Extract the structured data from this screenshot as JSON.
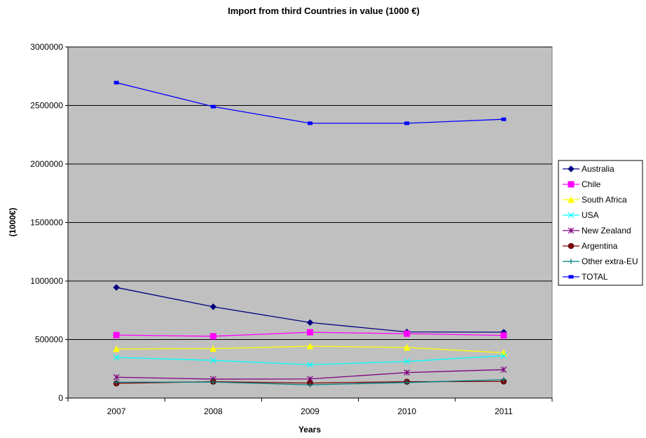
{
  "chart_data": {
    "type": "line",
    "title": "Import from third Countries in value (1000 €)",
    "xlabel": "Years",
    "ylabel": "(1000€)",
    "categories": [
      "2007",
      "2008",
      "2009",
      "2010",
      "2011"
    ],
    "ylim": [
      0,
      3000000
    ],
    "yticks": [
      "0",
      "500000",
      "1000000",
      "1500000",
      "2000000",
      "2500000",
      "3000000"
    ],
    "ytick_values": [
      0,
      500000,
      1000000,
      1500000,
      2000000,
      2500000,
      3000000
    ],
    "grid": "horizontal",
    "legend_position": "right",
    "plot_background": "#c0c0c0",
    "series": [
      {
        "name": "Australia",
        "color": "#000080",
        "marker": "diamond",
        "values": [
          945000,
          780000,
          645000,
          565000,
          563000
        ]
      },
      {
        "name": "Chile",
        "color": "#ff00ff",
        "marker": "square",
        "values": [
          538000,
          528000,
          562000,
          550000,
          535000
        ]
      },
      {
        "name": "South Africa",
        "color": "#ffff00",
        "marker": "triangle",
        "values": [
          420000,
          422000,
          443000,
          432000,
          387000
        ]
      },
      {
        "name": "USA",
        "color": "#00ffff",
        "marker": "x",
        "values": [
          347000,
          322000,
          285000,
          313000,
          362000
        ]
      },
      {
        "name": "New Zealand",
        "color": "#800080",
        "marker": "star",
        "values": [
          178000,
          162000,
          163000,
          218000,
          243000
        ]
      },
      {
        "name": "Argentina",
        "color": "#800000",
        "marker": "circle",
        "values": [
          125000,
          140000,
          128000,
          140000,
          142000
        ]
      },
      {
        "name": "Other extra-EU",
        "color": "#008080",
        "marker": "plus",
        "values": [
          135000,
          137000,
          113000,
          133000,
          157000
        ]
      },
      {
        "name": "TOTAL",
        "color": "#0000ff",
        "marker": "dash",
        "values": [
          2695000,
          2490000,
          2348000,
          2348000,
          2382000
        ]
      }
    ]
  }
}
